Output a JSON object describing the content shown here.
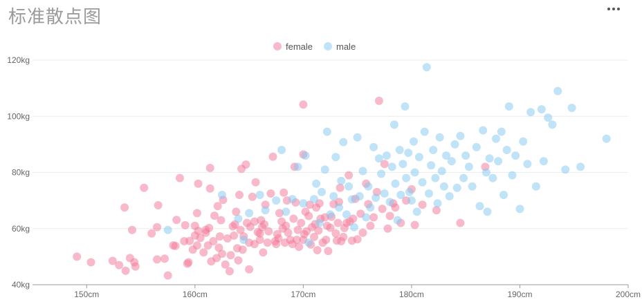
{
  "header": {
    "title": "标准散点图"
  },
  "toolbar": {
    "more_icon": "more-horizontal-icon"
  },
  "chart_data": {
    "type": "scatter",
    "title": "",
    "xlabel": "",
    "ylabel": "",
    "xlim": [
      145,
      200
    ],
    "ylim": [
      40,
      120
    ],
    "x_ticks": [
      "150cm",
      "160cm",
      "170cm",
      "180cm",
      "190cm",
      "200cm"
    ],
    "y_ticks": [
      "40kg",
      "60kg",
      "80kg",
      "100kg",
      "120kg"
    ],
    "grid": true,
    "legend_position": "top",
    "series": [
      {
        "name": "female",
        "color": "#f27596",
        "points": [
          [
            149.1,
            50
          ],
          [
            150.4,
            48
          ],
          [
            152.4,
            48.5
          ],
          [
            153,
            47
          ],
          [
            153.6,
            45
          ],
          [
            154,
            49.5
          ],
          [
            154.4,
            48
          ],
          [
            154.5,
            46.5
          ],
          [
            153.5,
            67.5
          ],
          [
            154.2,
            59.5
          ],
          [
            155.3,
            74.5
          ],
          [
            156,
            58.3
          ],
          [
            156.5,
            49
          ],
          [
            156.5,
            60.5
          ],
          [
            156.6,
            68.3
          ],
          [
            157.2,
            49.3
          ],
          [
            157.5,
            43.3
          ],
          [
            158,
            54
          ],
          [
            158.2,
            53.8
          ],
          [
            158.3,
            63.1
          ],
          [
            158.6,
            78
          ],
          [
            159,
            55.5
          ],
          [
            159.1,
            61.2
          ],
          [
            159.3,
            47.5
          ],
          [
            159.4,
            48
          ],
          [
            159.5,
            55.6
          ],
          [
            159.8,
            52.5
          ],
          [
            160,
            61
          ],
          [
            160,
            57.5
          ],
          [
            160.2,
            54
          ],
          [
            160.2,
            65.5
          ],
          [
            160.3,
            76
          ],
          [
            160.3,
            59.2
          ],
          [
            160.5,
            56.7
          ],
          [
            160.8,
            51.5
          ],
          [
            161,
            59.5
          ],
          [
            161,
            58.5
          ],
          [
            161.2,
            54
          ],
          [
            161.3,
            60.2
          ],
          [
            161.4,
            81.6
          ],
          [
            161.4,
            74.3
          ],
          [
            161.5,
            48.3
          ],
          [
            161.7,
            55.5
          ],
          [
            161.8,
            64.6
          ],
          [
            162,
            49.5
          ],
          [
            162.1,
            68
          ],
          [
            162.2,
            53.2
          ],
          [
            162.3,
            57.2
          ],
          [
            162.4,
            63
          ],
          [
            162.5,
            51
          ],
          [
            162.6,
            70.2
          ],
          [
            162.8,
            47.2
          ],
          [
            163,
            56.5
          ],
          [
            163.2,
            44.8
          ],
          [
            163.3,
            50.5
          ],
          [
            163.5,
            60.8
          ],
          [
            163.6,
            57.5
          ],
          [
            163.7,
            61.5
          ],
          [
            163.8,
            66
          ],
          [
            163.9,
            53
          ],
          [
            164,
            48.7
          ],
          [
            164.1,
            72
          ],
          [
            164.2,
            59.5
          ],
          [
            164.3,
            81.3
          ],
          [
            164.4,
            52.5
          ],
          [
            164.5,
            57.2
          ],
          [
            164.7,
            82.8
          ],
          [
            164.8,
            62
          ],
          [
            165,
            55
          ],
          [
            165,
            45.5
          ],
          [
            165.1,
            60.6
          ],
          [
            165.3,
            71.3
          ],
          [
            165.5,
            54.5
          ],
          [
            165.5,
            62.5
          ],
          [
            165.6,
            76.5
          ],
          [
            165.8,
            58.7
          ],
          [
            166,
            56
          ],
          [
            166,
            58.3
          ],
          [
            166.1,
            63
          ],
          [
            166.2,
            60.5
          ],
          [
            166.3,
            51.5
          ],
          [
            166.4,
            61.5
          ],
          [
            166.5,
            68.5
          ],
          [
            166.7,
            55
          ],
          [
            166.8,
            59
          ],
          [
            167,
            72.5
          ],
          [
            167.2,
            85.6
          ],
          [
            167.4,
            55.5
          ],
          [
            167.5,
            54.5
          ],
          [
            167.6,
            58
          ],
          [
            167.7,
            56.5
          ],
          [
            167.8,
            65.5
          ],
          [
            168,
            62.5
          ],
          [
            168.1,
            60
          ],
          [
            168.2,
            72.8
          ],
          [
            168.3,
            55
          ],
          [
            168.4,
            61
          ],
          [
            168.5,
            70
          ],
          [
            168.6,
            58.5
          ],
          [
            168.8,
            56
          ],
          [
            169,
            54.5
          ],
          [
            169.1,
            63.5
          ],
          [
            169.2,
            82
          ],
          [
            169.3,
            69.3
          ],
          [
            169.4,
            56
          ],
          [
            169.5,
            59.5
          ],
          [
            169.6,
            53.5
          ],
          [
            169.8,
            62
          ],
          [
            170,
            56
          ],
          [
            170,
            104.2
          ],
          [
            170,
            86.4
          ],
          [
            170.1,
            58
          ],
          [
            170.2,
            66
          ],
          [
            170.3,
            59
          ],
          [
            170.5,
            64.5
          ],
          [
            170.6,
            68.5
          ],
          [
            170.7,
            54.3
          ],
          [
            170.8,
            60.5
          ],
          [
            171,
            57
          ],
          [
            171.1,
            61.6
          ],
          [
            171.2,
            67.5
          ],
          [
            171.3,
            52.3
          ],
          [
            171.4,
            59.3
          ],
          [
            171.5,
            69
          ],
          [
            171.6,
            63.5
          ],
          [
            171.8,
            55
          ],
          [
            172,
            64
          ],
          [
            172.1,
            56
          ],
          [
            172.2,
            61
          ],
          [
            172.3,
            52
          ],
          [
            172.5,
            60.3
          ],
          [
            172.6,
            64.2
          ],
          [
            172.8,
            68.7
          ],
          [
            173,
            58.3
          ],
          [
            173.1,
            55.7
          ],
          [
            173.2,
            62
          ],
          [
            173.3,
            69.5
          ],
          [
            173.4,
            74.5
          ],
          [
            173.5,
            55.5
          ],
          [
            173.7,
            57
          ],
          [
            173.8,
            60.2
          ],
          [
            174,
            62
          ],
          [
            174.2,
            79
          ],
          [
            174.3,
            62.5
          ],
          [
            174.5,
            55.7
          ],
          [
            174.6,
            63.5
          ],
          [
            174.8,
            70.6
          ],
          [
            175,
            56.2
          ],
          [
            175.3,
            65.3
          ],
          [
            175.5,
            58.5
          ],
          [
            175.8,
            76
          ],
          [
            176,
            68.7
          ],
          [
            176.2,
            61
          ],
          [
            176.5,
            64
          ],
          [
            176.8,
            73
          ],
          [
            177,
            105.5
          ],
          [
            177.3,
            67
          ],
          [
            177.5,
            83
          ],
          [
            177.8,
            60
          ],
          [
            178,
            64.5
          ],
          [
            178.3,
            69
          ],
          [
            178.5,
            67.5
          ],
          [
            179,
            62
          ],
          [
            179.5,
            70
          ],
          [
            180,
            74
          ],
          [
            180.3,
            61.3
          ],
          [
            181,
            68.5
          ],
          [
            182.3,
            66.5
          ],
          [
            184.5,
            62
          ],
          [
            186.8,
            82
          ]
        ]
      },
      {
        "name": "male",
        "color": "#82c7f2",
        "points": [
          [
            157.5,
            59.5
          ],
          [
            162.5,
            72
          ],
          [
            164,
            63.5
          ],
          [
            164.5,
            56
          ],
          [
            165,
            65.5
          ],
          [
            166,
            72
          ],
          [
            166.5,
            66.5
          ],
          [
            167.5,
            70
          ],
          [
            168,
            88
          ],
          [
            168.4,
            66
          ],
          [
            169,
            70.5
          ],
          [
            169.5,
            82
          ],
          [
            170,
            69
          ],
          [
            170.2,
            86
          ],
          [
            170.5,
            55
          ],
          [
            171,
            70.5
          ],
          [
            171.2,
            76
          ],
          [
            171.5,
            62
          ],
          [
            171.7,
            73
          ],
          [
            172,
            81
          ],
          [
            172.2,
            94.5
          ],
          [
            172.5,
            65
          ],
          [
            172.8,
            71.5
          ],
          [
            173,
            85.5
          ],
          [
            173.3,
            67.5
          ],
          [
            173.5,
            77
          ],
          [
            173.7,
            90.8
          ],
          [
            174,
            65
          ],
          [
            174.2,
            75
          ],
          [
            174.5,
            70.4
          ],
          [
            174.7,
            60.5
          ],
          [
            175,
            92.5
          ],
          [
            175.2,
            71.5
          ],
          [
            175.5,
            80.5
          ],
          [
            175.8,
            64
          ],
          [
            176,
            75
          ],
          [
            176.2,
            67.5
          ],
          [
            176.5,
            89
          ],
          [
            176.7,
            71
          ],
          [
            177,
            85
          ],
          [
            177.2,
            79.5
          ],
          [
            177.5,
            72.5
          ],
          [
            177.7,
            86
          ],
          [
            178,
            69.5
          ],
          [
            178.2,
            82
          ],
          [
            178.4,
            97
          ],
          [
            178.5,
            76
          ],
          [
            178.7,
            63
          ],
          [
            178.9,
            88
          ],
          [
            179,
            72
          ],
          [
            179.2,
            83
          ],
          [
            179.4,
            103.5
          ],
          [
            179.5,
            78
          ],
          [
            179.7,
            87
          ],
          [
            180,
            70
          ],
          [
            180.2,
            91
          ],
          [
            180.3,
            80
          ],
          [
            180.5,
            66
          ],
          [
            180.7,
            85.5
          ],
          [
            181,
            76.5
          ],
          [
            181.2,
            94.5
          ],
          [
            181.4,
            117.5
          ],
          [
            181.6,
            72.5
          ],
          [
            181.8,
            82.5
          ],
          [
            182,
            88
          ],
          [
            182.2,
            78
          ],
          [
            182.4,
            69
          ],
          [
            182.6,
            92.5
          ],
          [
            182.8,
            80.5
          ],
          [
            183,
            75
          ],
          [
            183.2,
            86
          ],
          [
            183.5,
            71.5
          ],
          [
            183.7,
            84
          ],
          [
            184,
            90
          ],
          [
            184.2,
            74.5
          ],
          [
            184.5,
            93
          ],
          [
            184.8,
            78
          ],
          [
            185,
            86
          ],
          [
            185.3,
            82
          ],
          [
            185.6,
            75
          ],
          [
            186,
            89
          ],
          [
            186.3,
            68
          ],
          [
            186.6,
            95
          ],
          [
            186.9,
            80
          ],
          [
            187,
            66
          ],
          [
            187.2,
            85
          ],
          [
            187.5,
            78
          ],
          [
            187.8,
            92
          ],
          [
            188,
            84
          ],
          [
            188.3,
            94.5
          ],
          [
            188.5,
            72
          ],
          [
            188.8,
            88
          ],
          [
            189,
            103.5
          ],
          [
            189.3,
            79
          ],
          [
            189.6,
            86
          ],
          [
            190,
            67
          ],
          [
            190.3,
            91
          ],
          [
            190.7,
            83
          ],
          [
            191,
            101.5
          ],
          [
            191.5,
            75
          ],
          [
            192,
            102.5
          ],
          [
            192.2,
            84
          ],
          [
            192.6,
            99.5
          ],
          [
            193,
            97
          ],
          [
            193.5,
            109
          ],
          [
            194.2,
            81
          ],
          [
            194.8,
            103
          ],
          [
            195.6,
            82
          ],
          [
            198,
            92
          ],
          [
            179.8,
            73
          ]
        ]
      }
    ]
  }
}
